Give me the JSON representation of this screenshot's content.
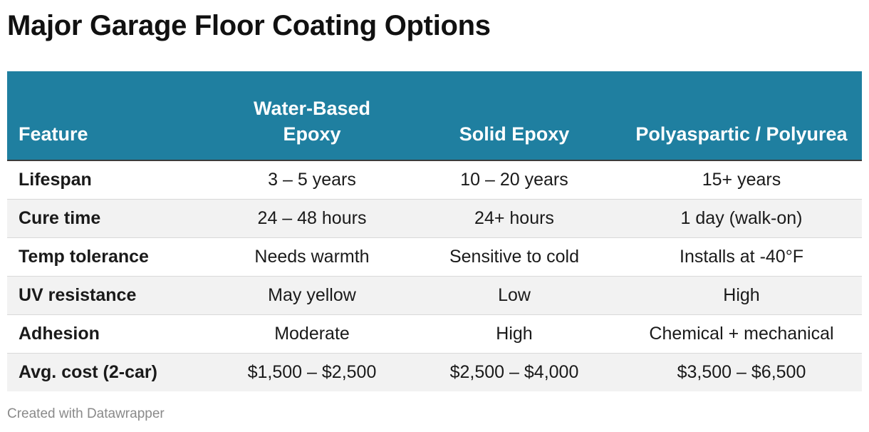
{
  "title": "Major Garage Floor Coating Options",
  "footer": "Created with Datawrapper",
  "colors": {
    "header_bg": "#1f7fa0",
    "header_text": "#ffffff",
    "shaded_row": "#f2f2f2"
  },
  "chart_data": {
    "type": "table",
    "title": "Major Garage Floor Coating Options",
    "columns": [
      "Feature",
      "Water-Based Epoxy",
      "Solid Epoxy",
      "Polyaspartic / Polyurea"
    ],
    "rows": [
      [
        "Lifespan",
        "3 – 5 years",
        "10 – 20 years",
        "15+ years"
      ],
      [
        "Cure time",
        "24 – 48 hours",
        "24+ hours",
        "1 day (walk-on)"
      ],
      [
        "Temp tolerance",
        "Needs warmth",
        "Sensitive to cold",
        "Installs at -40°F"
      ],
      [
        "UV resistance",
        "May yellow",
        "Low",
        "High"
      ],
      [
        "Adhesion",
        "Moderate",
        "High",
        "Chemical + mechanical"
      ],
      [
        "Avg. cost (2-car)",
        "$1,500 – $2,500",
        "$2,500 – $4,000",
        "$3,500 – $6,500"
      ]
    ]
  }
}
